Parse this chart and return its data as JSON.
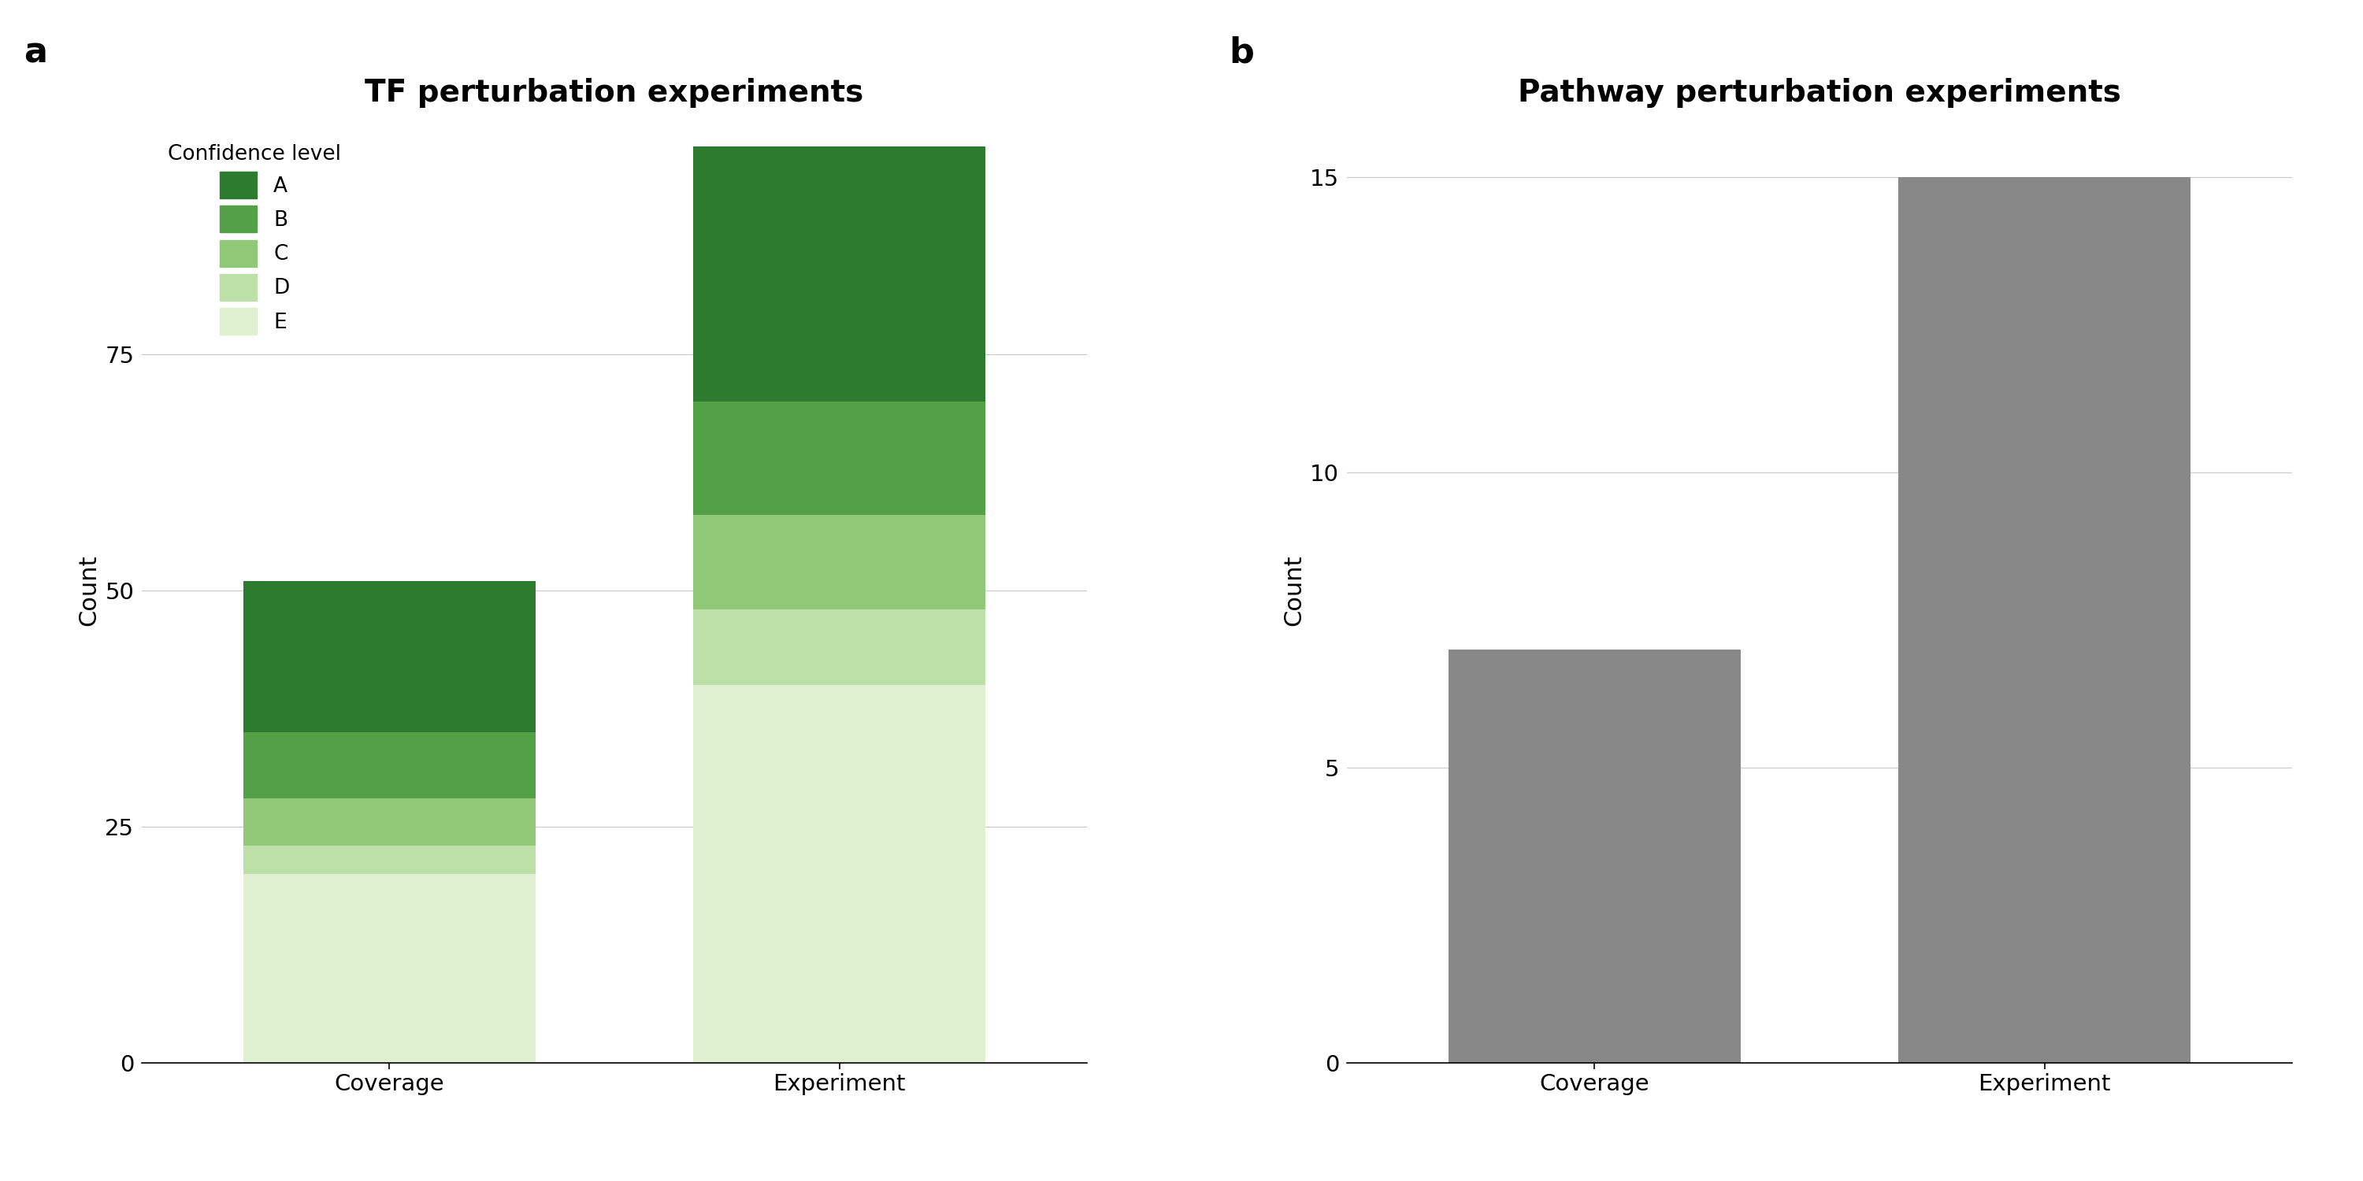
{
  "tf_title": "TF perturbation experiments",
  "pathway_title": "Pathway perturbation experiments",
  "panel_a_label": "a",
  "panel_b_label": "b",
  "ylabel": "Count",
  "xlabel_categories": [
    "Coverage",
    "Experiment"
  ],
  "tf_coverage": {
    "E": 20,
    "D": 3,
    "C": 5,
    "B": 7,
    "A": 16
  },
  "tf_experiment": {
    "E": 40,
    "D": 8,
    "C": 10,
    "B": 12,
    "A": 27
  },
  "pathway_coverage": 7,
  "pathway_experiment": 15,
  "colors": {
    "A": "#2d7b2e",
    "B": "#52a147",
    "C": "#90c878",
    "D": "#bddfa8",
    "E": "#dff0d0"
  },
  "pathway_bar_color": "#888888",
  "legend_title": "Confidence level",
  "tf_ylim": [
    0,
    100
  ],
  "tf_yticks": [
    0,
    25,
    50,
    75
  ],
  "pathway_ylim": [
    0,
    16
  ],
  "pathway_yticks": [
    0,
    5,
    10,
    15
  ],
  "background_color": "#ffffff",
  "title_fontsize": 28,
  "label_fontsize": 22,
  "tick_fontsize": 21,
  "legend_fontsize": 19,
  "legend_title_fontsize": 19,
  "panel_label_fontsize": 32
}
